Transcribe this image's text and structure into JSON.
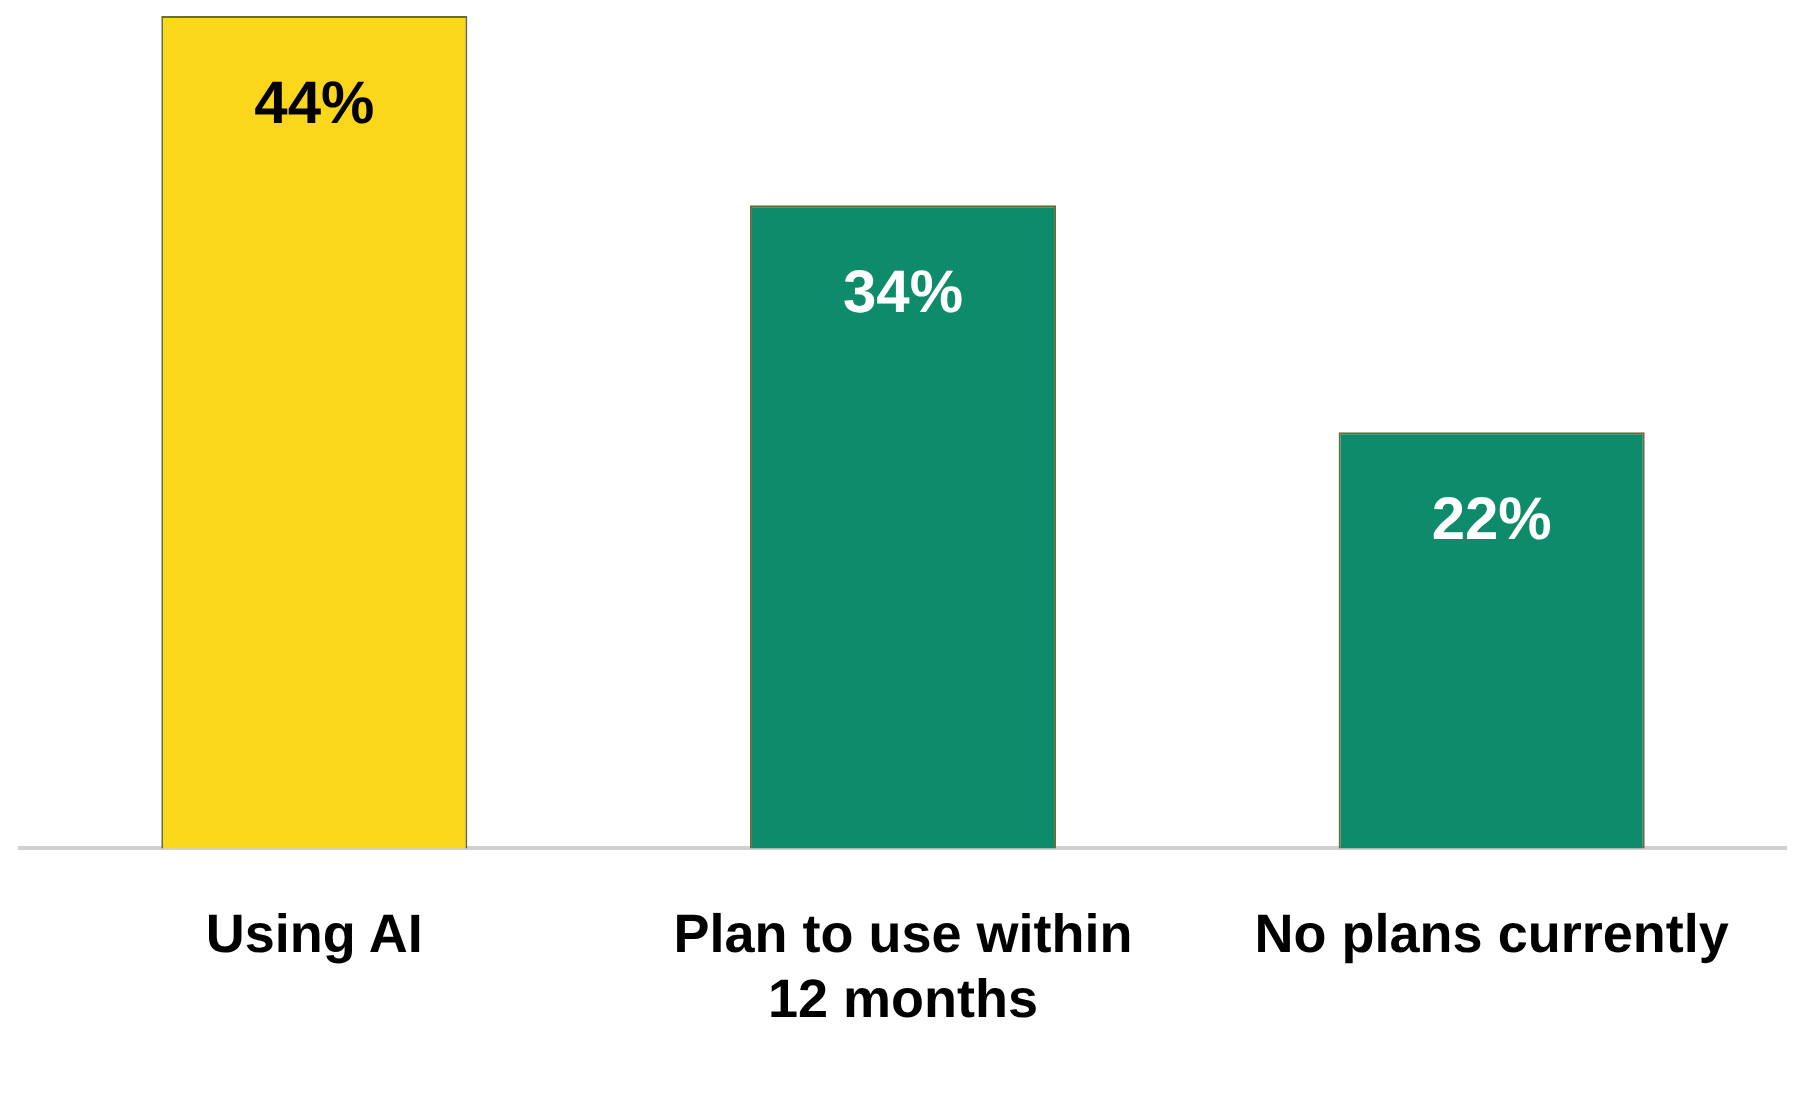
{
  "chart_data": {
    "type": "bar",
    "categories": [
      "Using AI",
      "Plan to use within 12 months",
      "No plans currently"
    ],
    "values": [
      44,
      34,
      22
    ],
    "colors": [
      "#fbd71b",
      "#0e8b6a",
      "#0e8b6a"
    ],
    "value_labels": [
      "44%",
      "34%",
      "22%"
    ],
    "grid": false,
    "legend": false,
    "tick_labels": "x"
  }
}
